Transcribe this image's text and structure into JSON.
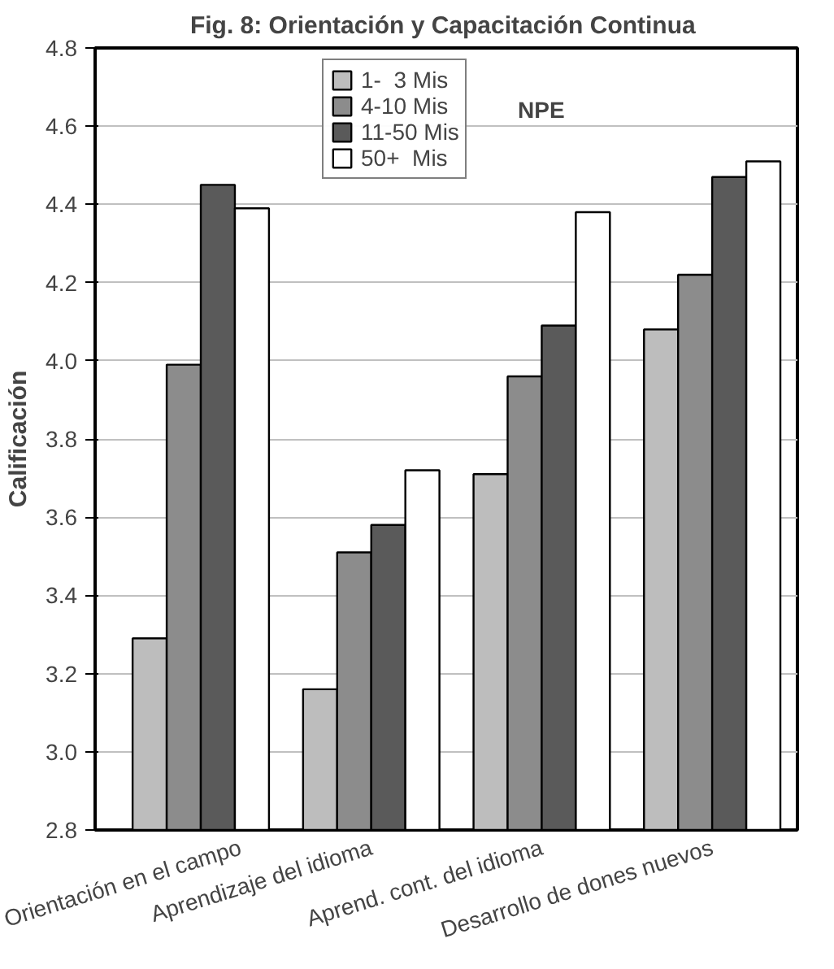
{
  "chart_data": {
    "type": "bar",
    "title": "Fig. 8:  Orientación y Capacitación Continua",
    "ylabel": "Calificación",
    "categories": [
      "Orientación en el campo",
      "Aprendizaje del idioma",
      "Aprend. cont. del idioma",
      "Desarrollo de dones nuevos"
    ],
    "series": [
      {
        "name": "1-  3 Mis",
        "color": "#bdbdbd",
        "values": [
          3.29,
          3.16,
          3.71,
          4.08
        ]
      },
      {
        "name": "4-10 Mis",
        "color": "#8c8c8c",
        "values": [
          3.99,
          3.51,
          3.96,
          4.22
        ]
      },
      {
        "name": "11-50 Mis",
        "color": "#5a5a5a",
        "values": [
          4.45,
          3.58,
          4.09,
          4.47
        ]
      },
      {
        "name": "50+  Mis",
        "color": "#ffffff",
        "values": [
          4.39,
          3.72,
          4.38,
          4.51
        ]
      }
    ],
    "ylim": [
      2.8,
      4.8
    ],
    "yticks": [
      {
        "value": 2.8,
        "label": "2.8"
      },
      {
        "value": 3.0,
        "label": "3.0"
      },
      {
        "value": 3.2,
        "label": "3.2"
      },
      {
        "value": 3.4,
        "label": "3.4"
      },
      {
        "value": 3.6,
        "label": "3.6"
      },
      {
        "value": 3.8,
        "label": "3.8"
      },
      {
        "value": 4.0,
        "label": "4.0"
      },
      {
        "value": 4.2,
        "label": "4.2"
      },
      {
        "value": 4.4,
        "label": "4.4"
      },
      {
        "value": 4.6,
        "label": "4.6"
      },
      {
        "value": 4.8,
        "label": "4.8"
      }
    ],
    "grid": "y",
    "legend": "top left",
    "annotations": [
      "NPE"
    ]
  }
}
